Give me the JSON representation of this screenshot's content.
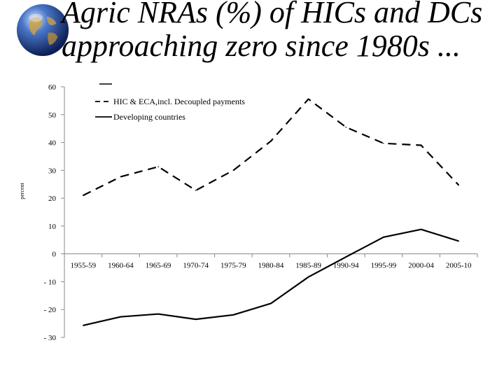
{
  "slide": {
    "title_line1": "Agric NRAs (%) of HICs and DCs",
    "title_line2": "approaching zero since 1980s ..."
  },
  "chart_data": {
    "type": "line",
    "ylabel": "percent",
    "ylim": [
      -30,
      60
    ],
    "yticks": [
      60,
      50,
      40,
      30,
      20,
      10,
      0,
      -10,
      -20,
      -30
    ],
    "categories": [
      "1955-59",
      "1960-64",
      "1965-69",
      "1970-74",
      "1975-79",
      "1980-84",
      "1985-89",
      "1990-94",
      "1995-99",
      "2000-04",
      "2005-10"
    ],
    "legend_position": "top-left",
    "series": [
      {
        "name": "HIC & ECA,incl. Decoupled payments",
        "style": "dashed",
        "color": "#000000",
        "values": [
          21,
          27.7,
          31.3,
          22.8,
          30,
          40.5,
          55.6,
          45.5,
          39.7,
          39,
          24.7
        ]
      },
      {
        "name": "Developing countries",
        "style": "solid",
        "color": "#000000",
        "values": [
          -25.7,
          -22.6,
          -21.6,
          -23.5,
          -21.9,
          -17.8,
          -8.3,
          -1.1,
          6,
          8.8,
          4.6
        ]
      }
    ]
  }
}
